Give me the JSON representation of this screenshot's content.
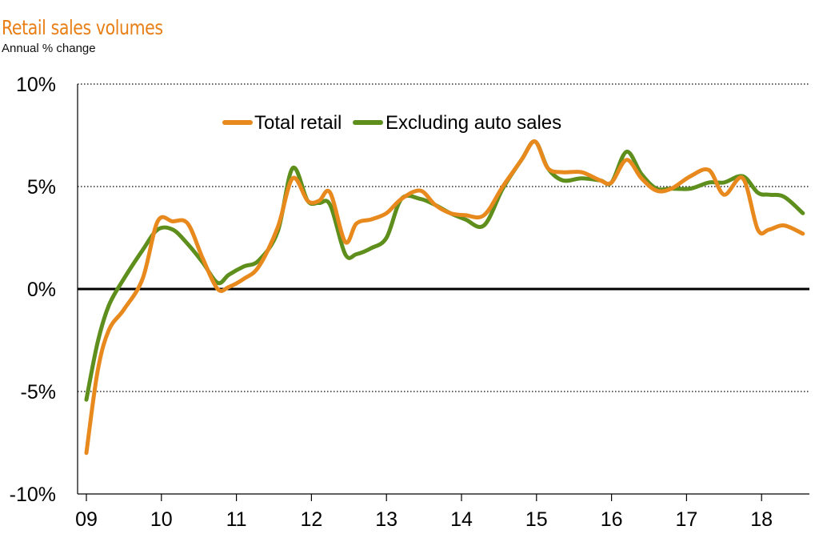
{
  "chart_data": {
    "type": "line",
    "title": "Retail sales volumes",
    "subtitle": "Annual % change",
    "xlabel": "",
    "ylabel": "",
    "ylim": [
      -10,
      10
    ],
    "xlim": [
      2009,
      2018.6
    ],
    "y_ticks": [
      "10%",
      "5%",
      "0%",
      "-5%",
      "-10%"
    ],
    "y_tick_values": [
      10,
      5,
      0,
      -5,
      -10
    ],
    "x_ticks": [
      "09",
      "10",
      "11",
      "12",
      "13",
      "14",
      "15",
      "16",
      "17",
      "18"
    ],
    "x_tick_values": [
      2009,
      2010,
      2011,
      2012,
      2013,
      2014,
      2015,
      2016,
      2017,
      2018
    ],
    "grid": "horizontal dotted",
    "legend_position": "top-center",
    "series": [
      {
        "name": "Total retail",
        "color": "#E8891E",
        "x": [
          2009.0,
          2009.15,
          2009.3,
          2009.5,
          2009.75,
          2009.95,
          2010.15,
          2010.35,
          2010.55,
          2010.75,
          2010.9,
          2011.1,
          2011.3,
          2011.55,
          2011.75,
          2011.95,
          2012.1,
          2012.25,
          2012.45,
          2012.6,
          2012.8,
          2013.0,
          2013.2,
          2013.45,
          2013.65,
          2013.85,
          2014.05,
          2014.3,
          2014.55,
          2014.8,
          2014.98,
          2015.15,
          2015.35,
          2015.6,
          2015.85,
          2016.0,
          2016.2,
          2016.4,
          2016.6,
          2016.8,
          2017.05,
          2017.3,
          2017.5,
          2017.75,
          2017.95,
          2018.1,
          2018.3,
          2018.55
        ],
        "values": [
          -8.0,
          -4.0,
          -2.0,
          -1.0,
          0.5,
          3.3,
          3.3,
          3.2,
          1.5,
          0.0,
          0.1,
          0.5,
          1.1,
          3.0,
          5.4,
          4.3,
          4.3,
          4.7,
          2.3,
          3.2,
          3.4,
          3.7,
          4.4,
          4.8,
          4.1,
          3.7,
          3.6,
          3.6,
          5.0,
          6.3,
          7.2,
          5.9,
          5.7,
          5.7,
          5.3,
          5.2,
          6.3,
          5.4,
          4.8,
          4.9,
          5.5,
          5.8,
          4.6,
          5.4,
          2.9,
          2.9,
          3.1,
          2.7
        ]
      },
      {
        "name": "Excluding auto sales",
        "color": "#5E8E1C",
        "x": [
          2009.0,
          2009.15,
          2009.3,
          2009.5,
          2009.75,
          2009.95,
          2010.15,
          2010.35,
          2010.55,
          2010.75,
          2010.9,
          2011.1,
          2011.3,
          2011.55,
          2011.75,
          2011.95,
          2012.1,
          2012.25,
          2012.45,
          2012.6,
          2012.8,
          2013.0,
          2013.2,
          2013.45,
          2013.65,
          2013.85,
          2014.05,
          2014.3,
          2014.55,
          2014.8,
          2014.98,
          2015.15,
          2015.35,
          2015.6,
          2015.85,
          2016.0,
          2016.2,
          2016.4,
          2016.6,
          2016.8,
          2017.05,
          2017.3,
          2017.5,
          2017.75,
          2017.95,
          2018.1,
          2018.3,
          2018.55
        ],
        "values": [
          -5.4,
          -2.6,
          -0.8,
          0.5,
          1.9,
          2.9,
          2.9,
          2.2,
          1.3,
          0.3,
          0.7,
          1.1,
          1.4,
          2.8,
          5.9,
          4.3,
          4.2,
          4.1,
          1.7,
          1.7,
          2.0,
          2.5,
          4.4,
          4.4,
          4.1,
          3.7,
          3.4,
          3.1,
          4.9,
          6.3,
          7.2,
          5.9,
          5.3,
          5.4,
          5.3,
          5.2,
          6.7,
          5.6,
          4.9,
          4.9,
          4.9,
          5.2,
          5.2,
          5.5,
          4.7,
          4.6,
          4.5,
          3.7
        ]
      }
    ]
  }
}
